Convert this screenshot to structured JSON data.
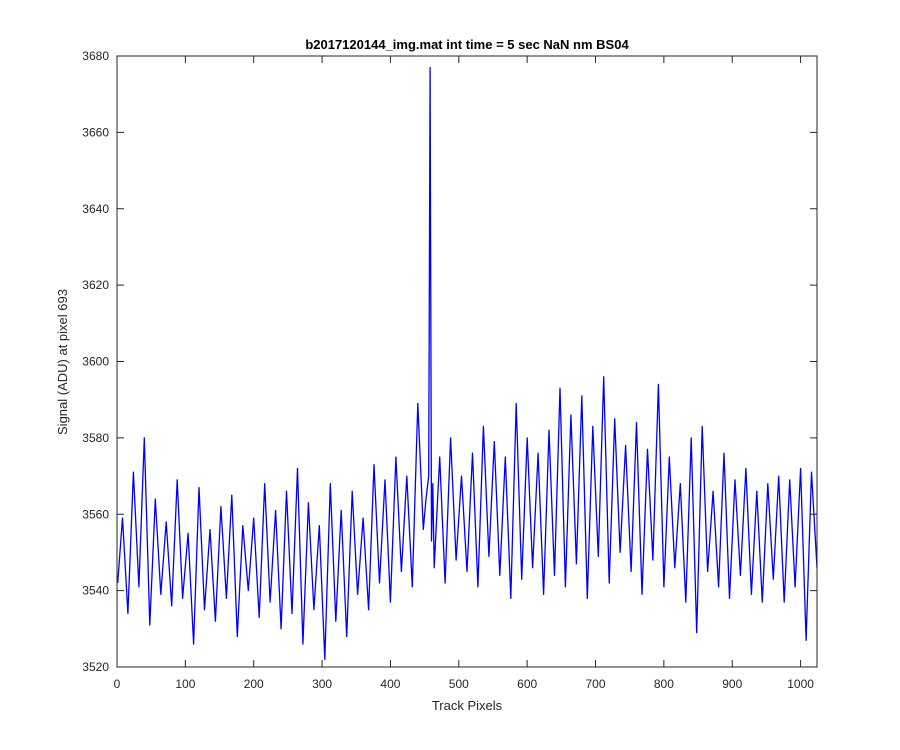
{
  "chart_data": {
    "type": "line",
    "title": "b2017120144_img.mat int time = 5 sec  NaN nm BS04",
    "xlabel": "Track Pixels",
    "ylabel": "Signal (ADU) at pixel 693",
    "xlim": [
      0,
      1024
    ],
    "ylim": [
      3520,
      3680
    ],
    "xticks": [
      0,
      100,
      200,
      300,
      400,
      500,
      600,
      700,
      800,
      900,
      1000
    ],
    "yticks": [
      3520,
      3540,
      3560,
      3580,
      3600,
      3620,
      3640,
      3660,
      3680
    ],
    "grid": false,
    "box": true,
    "line_color": "#0000ff",
    "series": [
      {
        "x": [
          1,
          8,
          16,
          24,
          32,
          40,
          48,
          56,
          64,
          72,
          80,
          88,
          96,
          104,
          112,
          120,
          128,
          136,
          144,
          152,
          160,
          168,
          176,
          184,
          192,
          200,
          208,
          216,
          224,
          232,
          240,
          248,
          256,
          264,
          272,
          280,
          288,
          296,
          304,
          312,
          320,
          328,
          336,
          344,
          352,
          360,
          368,
          376,
          384,
          392,
          400,
          408,
          416,
          424,
          432,
          440,
          448,
          452,
          456,
          458,
          460,
          462,
          464,
          472,
          480,
          488,
          496,
          504,
          512,
          520,
          528,
          536,
          544,
          552,
          560,
          568,
          576,
          584,
          592,
          600,
          608,
          616,
          624,
          632,
          640,
          648,
          656,
          664,
          672,
          680,
          688,
          696,
          704,
          712,
          720,
          728,
          736,
          744,
          752,
          760,
          768,
          776,
          784,
          792,
          800,
          808,
          816,
          824,
          832,
          840,
          848,
          856,
          864,
          872,
          880,
          888,
          896,
          904,
          912,
          920,
          928,
          936,
          944,
          952,
          960,
          968,
          976,
          984,
          992,
          1000,
          1008,
          1016,
          1024
        ],
        "y": [
          3542,
          3559,
          3534,
          3571,
          3541,
          3580,
          3531,
          3564,
          3539,
          3558,
          3536,
          3569,
          3538,
          3555,
          3526,
          3567,
          3535,
          3556,
          3532,
          3562,
          3538,
          3565,
          3528,
          3557,
          3540,
          3559,
          3533,
          3568,
          3537,
          3561,
          3530,
          3566,
          3534,
          3572,
          3526,
          3563,
          3535,
          3557,
          3522,
          3568,
          3532,
          3561,
          3528,
          3566,
          3539,
          3559,
          3535,
          3573,
          3542,
          3569,
          3537,
          3575,
          3545,
          3570,
          3541,
          3589,
          3556,
          3564,
          3570,
          3677,
          3553,
          3568,
          3546,
          3575,
          3542,
          3580,
          3548,
          3570,
          3545,
          3576,
          3541,
          3583,
          3549,
          3579,
          3544,
          3575,
          3538,
          3589,
          3543,
          3580,
          3546,
          3576,
          3539,
          3582,
          3544,
          3593,
          3541,
          3586,
          3547,
          3591,
          3538,
          3583,
          3549,
          3596,
          3542,
          3585,
          3550,
          3578,
          3545,
          3584,
          3539,
          3577,
          3548,
          3594,
          3541,
          3575,
          3546,
          3568,
          3537,
          3580,
          3529,
          3583,
          3545,
          3566,
          3541,
          3576,
          3538,
          3569,
          3544,
          3572,
          3539,
          3566,
          3537,
          3568,
          3543,
          3570,
          3537,
          3569,
          3541,
          3572,
          3527,
          3571,
          3546
        ]
      }
    ]
  }
}
